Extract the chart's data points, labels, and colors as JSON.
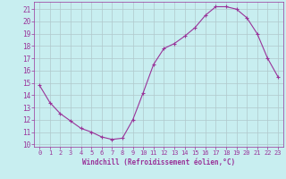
{
  "x_values": [
    0,
    1,
    2,
    3,
    4,
    5,
    6,
    7,
    8,
    9,
    10,
    11,
    12,
    13,
    14,
    15,
    16,
    17,
    18,
    19,
    20,
    21,
    22,
    23
  ],
  "y_values": [
    14.8,
    13.4,
    12.5,
    11.9,
    11.3,
    11.0,
    10.6,
    10.4,
    10.5,
    12.0,
    14.2,
    16.5,
    17.8,
    18.2,
    18.8,
    19.5,
    20.5,
    21.2,
    21.2,
    21.0,
    20.3,
    19.0,
    17.0,
    15.5
  ],
  "line_color": "#993399",
  "marker": "+",
  "bg_color": "#c8eef0",
  "grid_color": "#b0c8cc",
  "xlabel": "Windchill (Refroidissement éolien,°C)",
  "xlabel_color": "#993399",
  "tick_color": "#993399",
  "label_color": "#993399",
  "ylim": [
    9.8,
    21.6
  ],
  "xlim": [
    -0.5,
    23.5
  ],
  "yticks": [
    10,
    11,
    12,
    13,
    14,
    15,
    16,
    17,
    18,
    19,
    20,
    21
  ],
  "xticks": [
    0,
    1,
    2,
    3,
    4,
    5,
    6,
    7,
    8,
    9,
    10,
    11,
    12,
    13,
    14,
    15,
    16,
    17,
    18,
    19,
    20,
    21,
    22,
    23
  ]
}
